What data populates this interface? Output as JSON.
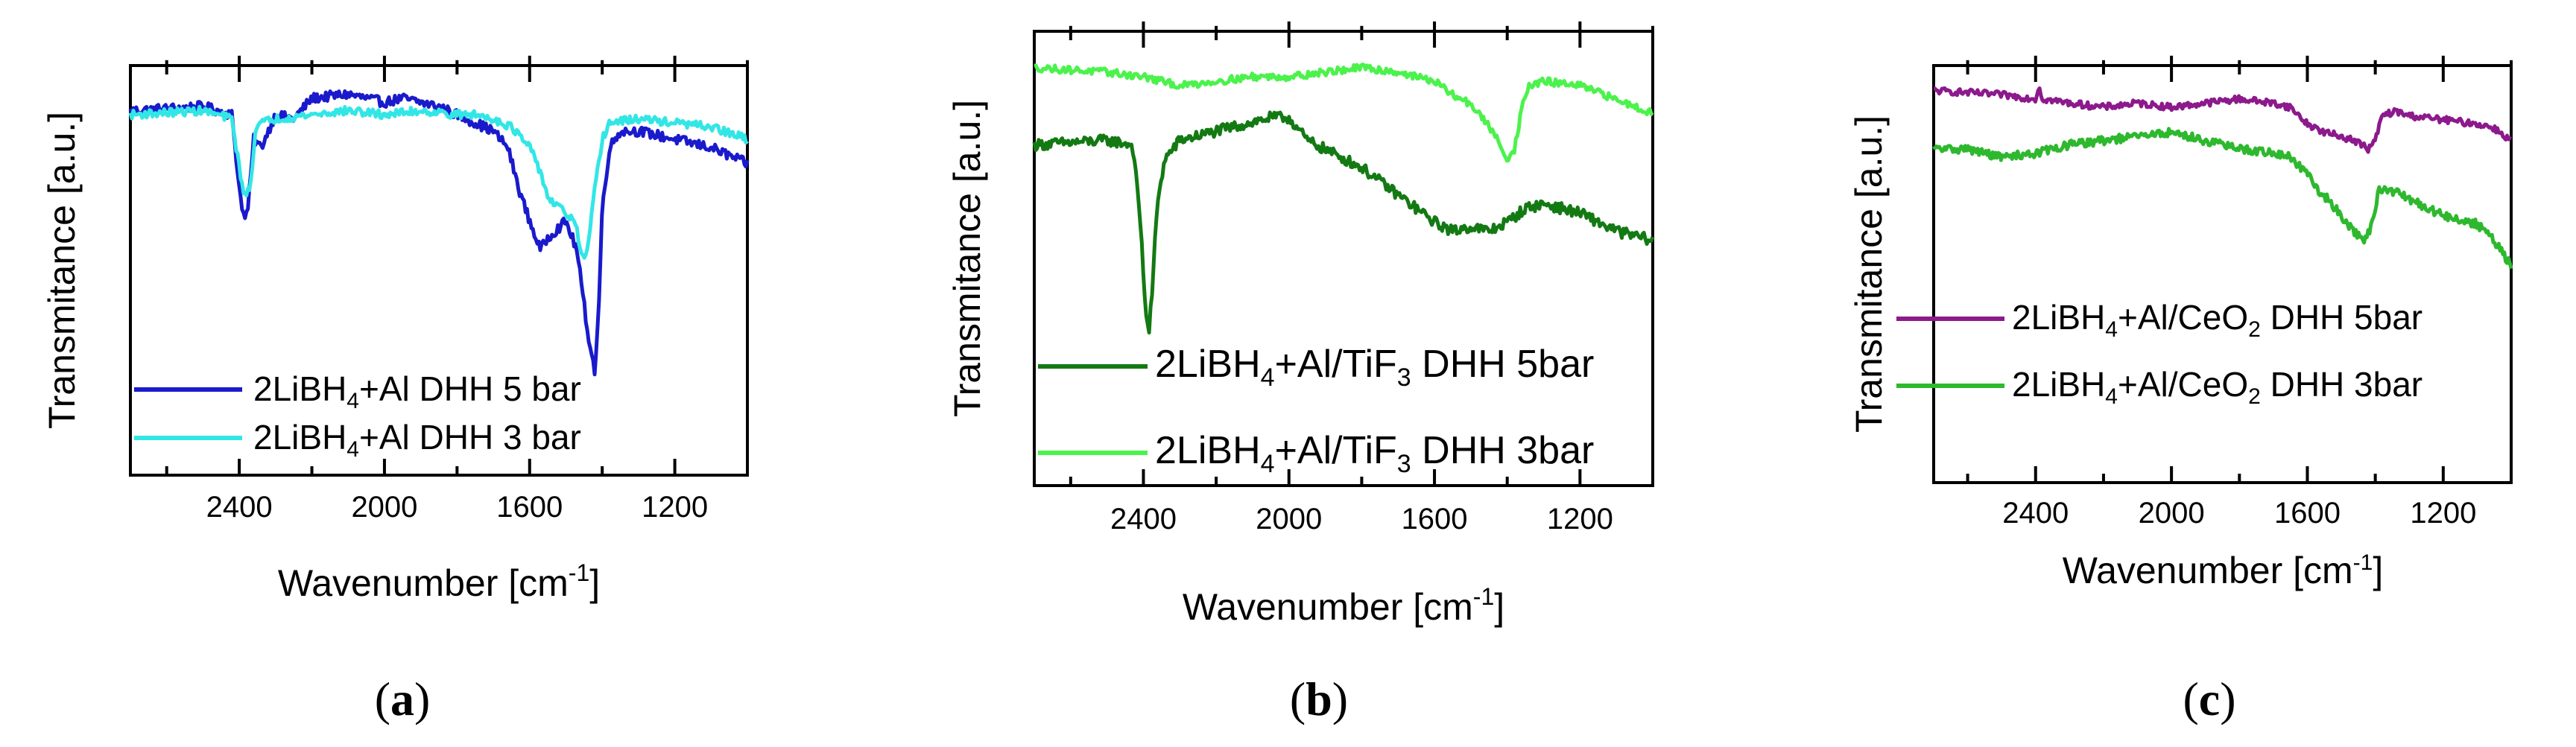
{
  "figure": {
    "panels": [
      {
        "id": "a",
        "caption_letter": "a",
        "caption_open": "(",
        "caption_close": ")",
        "xlabel": "Wavenumber [cm",
        "xlabel_sup": "-1",
        "xlabel_end": "]",
        "ylabel": "Transmitance [a.u.]",
        "legend": [
          {
            "pre": "2LiBH",
            "sub": "4",
            "post": "+Al DHH 5 bar",
            "color": "#1a1acc"
          },
          {
            "pre": "2LiBH",
            "sub": "4",
            "post": "+Al DHH 3 bar",
            "color": "#33e6e6"
          }
        ]
      },
      {
        "id": "b",
        "caption_letter": "b",
        "caption_open": "(",
        "caption_close": ")",
        "xlabel": "Wavenumber [cm",
        "xlabel_sup": "-1",
        "xlabel_end": "]",
        "ylabel": "Transmitance [a.u.]",
        "legend": [
          {
            "pre": "2LiBH",
            "sub": "4",
            "mid": "+Al/TiF",
            "sub2": "3",
            "post": " DHH 5bar",
            "color": "#137a13"
          },
          {
            "pre": "2LiBH",
            "sub": "4",
            "mid": "+Al/TiF",
            "sub2": "3",
            "post": " DHH 3bar",
            "color": "#4cf24c"
          }
        ]
      },
      {
        "id": "c",
        "caption_letter": "c",
        "caption_open": "(",
        "caption_close": ")",
        "xlabel": "Wavenumber [cm",
        "xlabel_sup": "-1",
        "xlabel_end": "]",
        "ylabel": "Transmitance [a.u.]",
        "legend": [
          {
            "pre": "2LiBH",
            "sub": "4",
            "mid": "+Al/CeO",
            "sub2": "2",
            "post": " DHH 5bar",
            "color": "#8c1a8c"
          },
          {
            "pre": "2LiBH",
            "sub": "4",
            "mid": "+Al/CeO",
            "sub2": "2",
            "post": " DHH 3bar",
            "color": "#2eb82e"
          }
        ]
      }
    ]
  },
  "chart_data": [
    {
      "type": "line",
      "panel": "a",
      "xlabel": "Wavenumber [cm-1]",
      "ylabel": "Transmitance [a.u.]",
      "xlim": [
        2700,
        1000
      ],
      "x_reversed": true,
      "ylim": [
        0,
        1
      ],
      "xticks": [
        2400,
        2000,
        1600,
        1200
      ],
      "xtick_labels": [
        "2400",
        "2000",
        "1600",
        "1200"
      ],
      "series": [
        {
          "name": "2LiBH4+Al DHH 5 bar",
          "color": "#1a1acc",
          "noise": 0.012,
          "x": [
            2700,
            2500,
            2420,
            2400,
            2385,
            2375,
            2360,
            2340,
            2300,
            2250,
            2200,
            2100,
            2000,
            1950,
            1850,
            1750,
            1700,
            1660,
            1630,
            1600,
            1570,
            1550,
            1500,
            1470,
            1440,
            1430,
            1420,
            1410,
            1400,
            1380,
            1350,
            1300,
            1200,
            1100,
            1000
          ],
          "y": [
            0.89,
            0.9,
            0.88,
            0.7,
            0.62,
            0.66,
            0.82,
            0.8,
            0.88,
            0.87,
            0.92,
            0.93,
            0.91,
            0.92,
            0.9,
            0.86,
            0.84,
            0.8,
            0.7,
            0.62,
            0.55,
            0.58,
            0.62,
            0.55,
            0.35,
            0.3,
            0.25,
            0.4,
            0.65,
            0.8,
            0.84,
            0.84,
            0.82,
            0.8,
            0.76
          ]
        },
        {
          "name": "2LiBH4+Al DHH 3 bar",
          "color": "#33e6e6",
          "noise": 0.01,
          "x": [
            2700,
            2500,
            2420,
            2400,
            2385,
            2370,
            2355,
            2340,
            2300,
            2200,
            2100,
            2000,
            1900,
            1800,
            1750,
            1700,
            1650,
            1600,
            1570,
            1550,
            1530,
            1500,
            1480,
            1470,
            1460,
            1450,
            1440,
            1420,
            1400,
            1380,
            1300,
            1200,
            1100,
            1000
          ],
          "y": [
            0.88,
            0.89,
            0.87,
            0.75,
            0.68,
            0.7,
            0.85,
            0.86,
            0.87,
            0.88,
            0.89,
            0.88,
            0.89,
            0.88,
            0.88,
            0.87,
            0.85,
            0.8,
            0.74,
            0.68,
            0.66,
            0.64,
            0.62,
            0.6,
            0.55,
            0.52,
            0.55,
            0.7,
            0.82,
            0.86,
            0.87,
            0.86,
            0.85,
            0.82
          ]
        }
      ]
    },
    {
      "type": "line",
      "panel": "b",
      "xlabel": "Wavenumber [cm-1]",
      "ylabel": "Transmitance [a.u.]",
      "xlim": [
        2700,
        1000
      ],
      "x_reversed": true,
      "ylim": [
        0,
        1
      ],
      "xticks": [
        2400,
        2000,
        1600,
        1200
      ],
      "xtick_labels": [
        "2400",
        "2000",
        "1600",
        "1200"
      ],
      "series": [
        {
          "name": "2LiBH4+Al/TiF3 DHH 5bar",
          "color": "#137a13",
          "noise": 0.012,
          "x": [
            2700,
            2500,
            2430,
            2410,
            2395,
            2385,
            2375,
            2365,
            2355,
            2340,
            2300,
            2200,
            2100,
            2050,
            2000,
            1950,
            1900,
            1800,
            1700,
            1600,
            1550,
            1500,
            1450,
            1400,
            1350,
            1300,
            1200,
            1100,
            1000
          ],
          "y": [
            0.75,
            0.76,
            0.75,
            0.6,
            0.4,
            0.33,
            0.44,
            0.58,
            0.66,
            0.72,
            0.76,
            0.78,
            0.8,
            0.81,
            0.81,
            0.76,
            0.74,
            0.7,
            0.64,
            0.58,
            0.56,
            0.57,
            0.56,
            0.58,
            0.61,
            0.62,
            0.6,
            0.56,
            0.54
          ]
        },
        {
          "name": "2LiBH4+Al/TiF3 DHH 3bar",
          "color": "#4cf24c",
          "noise": 0.008,
          "x": [
            2700,
            2500,
            2400,
            2300,
            2200,
            2100,
            2000,
            1900,
            1800,
            1700,
            1600,
            1550,
            1500,
            1480,
            1460,
            1440,
            1420,
            1400,
            1380,
            1360,
            1340,
            1300,
            1200,
            1100,
            1000
          ],
          "y": [
            0.92,
            0.91,
            0.9,
            0.88,
            0.89,
            0.9,
            0.9,
            0.91,
            0.92,
            0.91,
            0.89,
            0.86,
            0.84,
            0.82,
            0.8,
            0.78,
            0.75,
            0.72,
            0.74,
            0.83,
            0.88,
            0.89,
            0.88,
            0.85,
            0.82
          ]
        }
      ]
    },
    {
      "type": "line",
      "panel": "c",
      "xlabel": "Wavenumber [cm-1]",
      "ylabel": "Transmitance [a.u.]",
      "xlim": [
        2700,
        1000
      ],
      "x_reversed": true,
      "ylim": [
        0,
        1
      ],
      "xticks": [
        2400,
        2000,
        1600,
        1200
      ],
      "xtick_labels": [
        "2400",
        "2000",
        "1600",
        "1200"
      ],
      "series": [
        {
          "name": "2LiBH4+Al/CeO2 DHH 5bar",
          "color": "#8c1a8c",
          "noise": 0.008,
          "x": [
            2700,
            2500,
            2400,
            2390,
            2380,
            2300,
            2200,
            2100,
            2000,
            1900,
            1800,
            1700,
            1650,
            1600,
            1550,
            1500,
            1460,
            1420,
            1400,
            1380,
            1340,
            1300,
            1200,
            1100,
            1050,
            1000
          ],
          "y": [
            0.94,
            0.93,
            0.92,
            0.95,
            0.92,
            0.91,
            0.9,
            0.91,
            0.9,
            0.91,
            0.92,
            0.91,
            0.9,
            0.86,
            0.84,
            0.83,
            0.82,
            0.8,
            0.82,
            0.88,
            0.89,
            0.88,
            0.87,
            0.86,
            0.85,
            0.82
          ]
        },
        {
          "name": "2LiBH4+Al/CeO2 DHH 3bar",
          "color": "#2eb82e",
          "noise": 0.01,
          "x": [
            2700,
            2600,
            2500,
            2400,
            2300,
            2200,
            2100,
            2000,
            1900,
            1800,
            1700,
            1650,
            1600,
            1570,
            1540,
            1500,
            1460,
            1430,
            1410,
            1390,
            1350,
            1300,
            1200,
            1100,
            1050,
            1000
          ],
          "y": [
            0.8,
            0.8,
            0.78,
            0.79,
            0.81,
            0.82,
            0.83,
            0.84,
            0.82,
            0.8,
            0.79,
            0.78,
            0.74,
            0.7,
            0.68,
            0.64,
            0.6,
            0.58,
            0.62,
            0.7,
            0.7,
            0.68,
            0.64,
            0.62,
            0.58,
            0.52
          ]
        }
      ]
    }
  ]
}
